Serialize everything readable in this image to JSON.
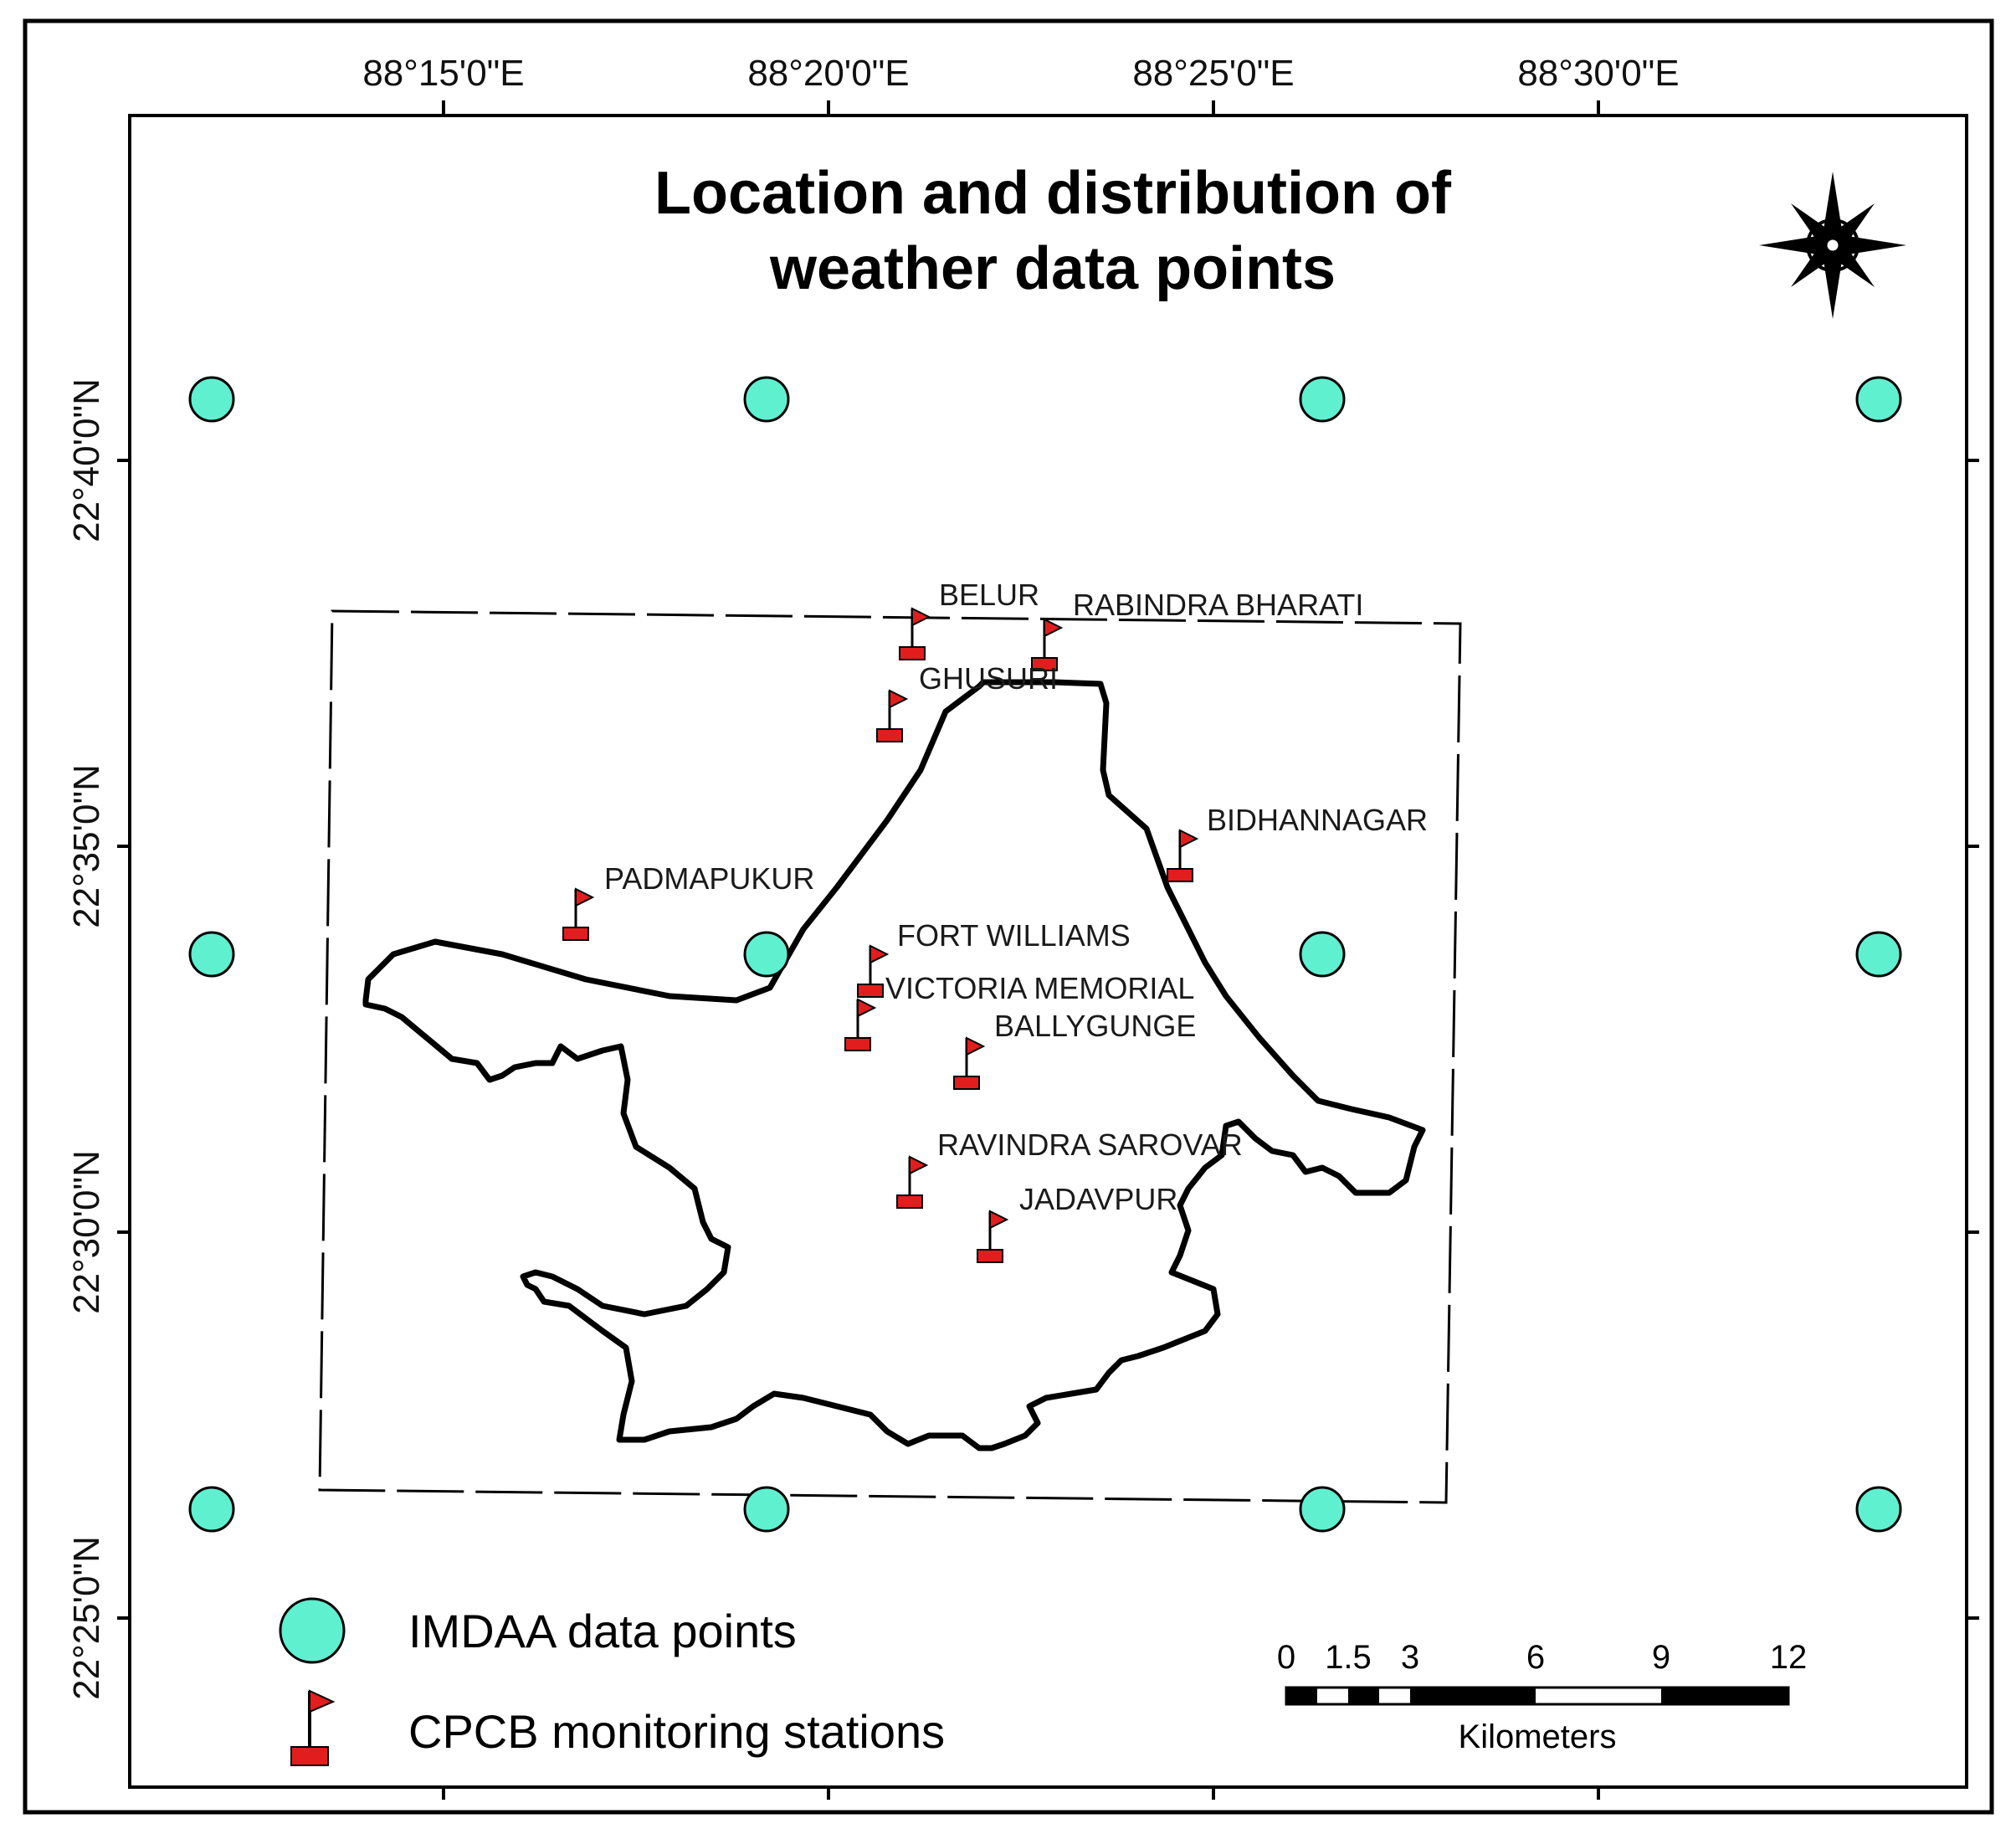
{
  "map": {
    "title_line1": "Location and distribution of",
    "title_line2": "weather data points",
    "longitude_labels": [
      "88°15'0\"E",
      "88°20'0\"E",
      "88°25'0\"E",
      "88°30'0\"E"
    ],
    "latitude_labels": [
      "22°40'0\"N",
      "22°35'0\"N",
      "22°30'0\"N",
      "22°25'0\"N"
    ]
  },
  "legend": {
    "imdaa_label": "IMDAA data points",
    "cpcb_label": "CPCB monitoring stations"
  },
  "scale_bar": {
    "ticks": [
      "0",
      "1.5",
      "3",
      "6",
      "9",
      "12"
    ],
    "unit": "Kilometers"
  },
  "stations": [
    "BELUR",
    "RABINDRA BHARATI",
    "GHUSURI",
    "BIDHANNAGAR",
    "PADMAPUKUR",
    "FORT WILLIAMS",
    "VICTORIA MEMORIAL",
    "BALLYGUNGE",
    "RAVINDRA SAROVAR",
    "JADAVPUR"
  ],
  "colors": {
    "imdaa_point": "#5ff0d0",
    "cpcb_station": "#e21d1d",
    "boundary": "#000000"
  },
  "north_arrow_icon": "compass-rose-icon"
}
